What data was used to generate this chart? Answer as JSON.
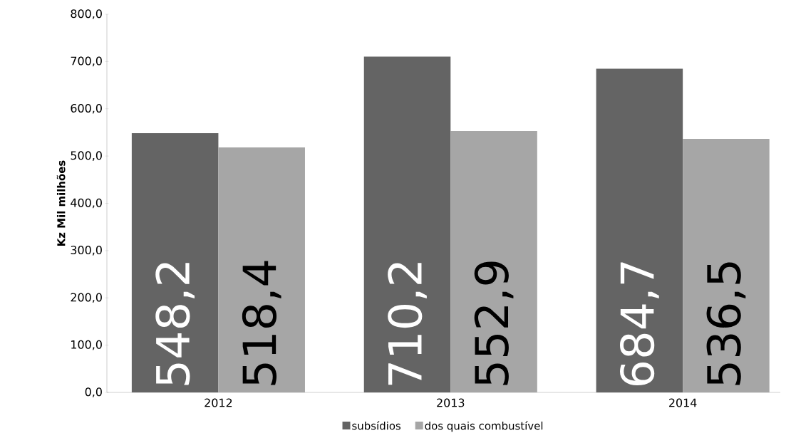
{
  "chart_data": {
    "type": "bar",
    "ylabel": "Kz Mil milhões",
    "categories": [
      "2012",
      "2013",
      "2014"
    ],
    "series": [
      {
        "name": "subsídios",
        "color": "#646464",
        "values": [
          548.2,
          710.2,
          684.7
        ],
        "value_labels": [
          "548,2",
          "710,2",
          "684,7"
        ]
      },
      {
        "name": "dos quais combustível",
        "color": "#a6a6a6",
        "values": [
          518.4,
          552.9,
          536.5
        ],
        "value_labels": [
          "518,4",
          "552,9",
          "536,5"
        ]
      }
    ],
    "ylim": [
      0,
      800
    ],
    "yticks": [
      {
        "value": 0,
        "label": "0,0"
      },
      {
        "value": 100,
        "label": "100,0"
      },
      {
        "value": 200,
        "label": "200,0"
      },
      {
        "value": 300,
        "label": "300,0"
      },
      {
        "value": 400,
        "label": "400,0"
      },
      {
        "value": 500,
        "label": "500,0"
      },
      {
        "value": 600,
        "label": "600,0"
      },
      {
        "value": 700,
        "label": "700,0"
      },
      {
        "value": 800,
        "label": "800,0"
      }
    ],
    "grid": false,
    "legend": "bottom"
  }
}
